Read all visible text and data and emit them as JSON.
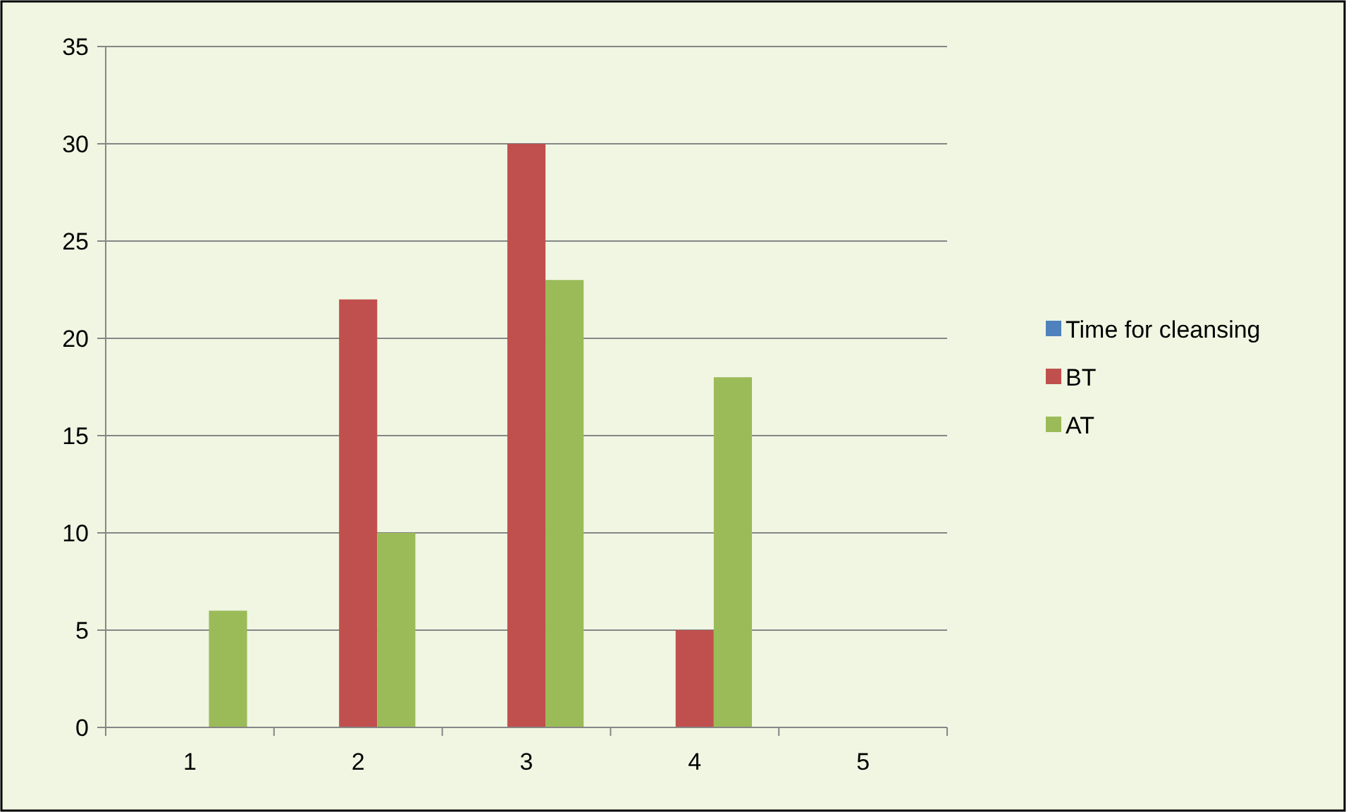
{
  "chart_data": {
    "type": "bar",
    "categories": [
      "1",
      "2",
      "3",
      "4",
      "5"
    ],
    "series": [
      {
        "name": "Time for cleansing",
        "color": "#4f81bd",
        "values": [
          null,
          null,
          null,
          null,
          null
        ]
      },
      {
        "name": "BT",
        "color": "#c0504d",
        "values": [
          null,
          22,
          30,
          5,
          null
        ]
      },
      {
        "name": "AT",
        "color": "#9bbb59",
        "values": [
          6,
          10,
          23,
          18,
          null
        ]
      }
    ],
    "ylim": [
      0,
      35
    ],
    "yticks": [
      0,
      5,
      10,
      15,
      20,
      25,
      30,
      35
    ],
    "grid": "y",
    "legend": "right"
  }
}
